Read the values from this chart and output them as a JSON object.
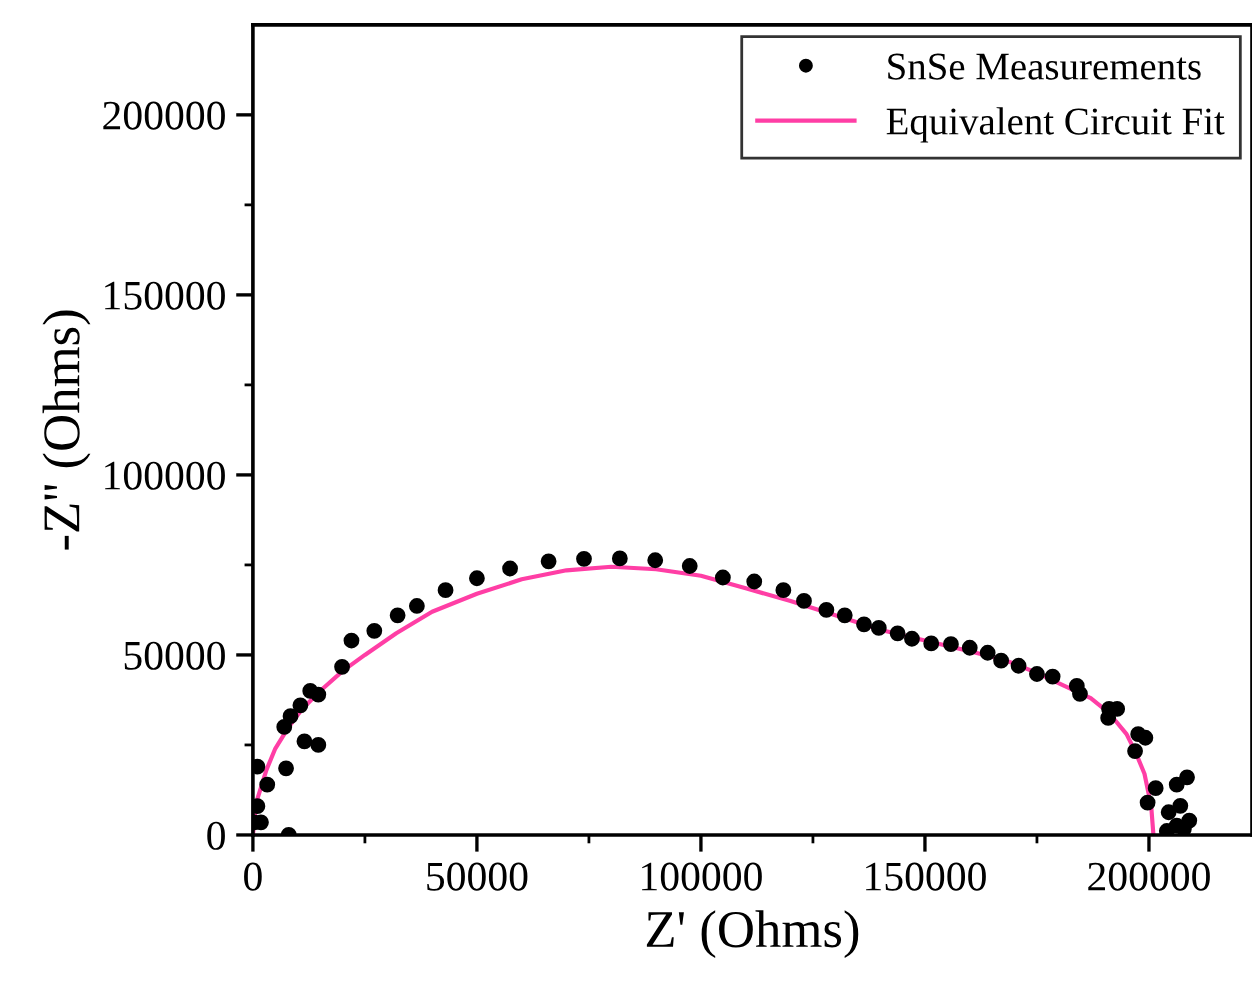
{
  "chart_data": {
    "type": "scatter",
    "xlabel": "Z' (Ohms)",
    "ylabel": "-Z'' (Ohms)",
    "xlim": [
      0,
      223000
    ],
    "ylim": [
      0,
      225000
    ],
    "xticks": [
      0,
      50000,
      100000,
      150000,
      200000
    ],
    "yticks": [
      0,
      50000,
      100000,
      150000,
      200000
    ],
    "grid": false,
    "legend": "top right",
    "series": [
      {
        "name": "SnSe Measurements",
        "marker": "circle",
        "color": "#000000",
        "x": [
          300,
          1800,
          1000,
          1000,
          3200,
          8000,
          7400,
          7000,
          8400,
          10600,
          12800,
          14600,
          11500,
          14600,
          19900,
          22000,
          27100,
          32300,
          36600,
          43000,
          50000,
          57400,
          66000,
          73900,
          81900,
          89800,
          97500,
          104900,
          111900,
          118400,
          123000,
          128000,
          132100,
          136400,
          139700,
          143900,
          147100,
          151400,
          155800,
          160000,
          164000,
          167000,
          170900,
          175000,
          178500,
          183900,
          184600,
          191100,
          192900,
          190900,
          197600,
          199200,
          196900,
          201500,
          199700,
          206200,
          208500,
          204400,
          207000,
          209000,
          206200,
          204000,
          207800
        ],
        "values": [
          3500,
          3500,
          8000,
          19000,
          14000,
          0,
          18500,
          30000,
          33000,
          36000,
          40000,
          39000,
          26000,
          25000,
          46700,
          54000,
          56700,
          61000,
          63600,
          68000,
          71300,
          74000,
          76000,
          76700,
          76800,
          76300,
          74700,
          71500,
          70400,
          68000,
          65000,
          62500,
          61000,
          58500,
          57500,
          56000,
          54500,
          53200,
          53000,
          52000,
          50600,
          48400,
          47000,
          44700,
          44000,
          41400,
          39200,
          35000,
          35000,
          32500,
          28000,
          27000,
          23300,
          13000,
          9000,
          14000,
          16000,
          6300,
          8100,
          4000,
          2600,
          1100,
          1700
        ]
      },
      {
        "name": "Equivalent Circuit Fit",
        "type": "line",
        "marker": "none",
        "line_style": "solid",
        "color": "#ff3ea5",
        "x": [
          0,
          500,
          1000,
          2000,
          3000,
          5000,
          8000,
          11000,
          15000,
          20000,
          25000,
          32000,
          40000,
          50000,
          60000,
          70000,
          80000,
          90000,
          100000,
          110000,
          120000,
          130000,
          140000,
          150000,
          160000,
          168000,
          175000,
          181000,
          187000,
          191000,
          195000,
          197000,
          199000,
          200500,
          201000
        ],
        "values": [
          0,
          6000,
          10000,
          14000,
          18000,
          24000,
          30000,
          35000,
          40000,
          45500,
          50000,
          56000,
          62000,
          67000,
          71000,
          73500,
          74500,
          73800,
          72000,
          68500,
          65000,
          61000,
          57000,
          54000,
          51000,
          48500,
          45000,
          41500,
          38000,
          34000,
          28000,
          23000,
          17000,
          8000,
          0
        ]
      }
    ]
  }
}
